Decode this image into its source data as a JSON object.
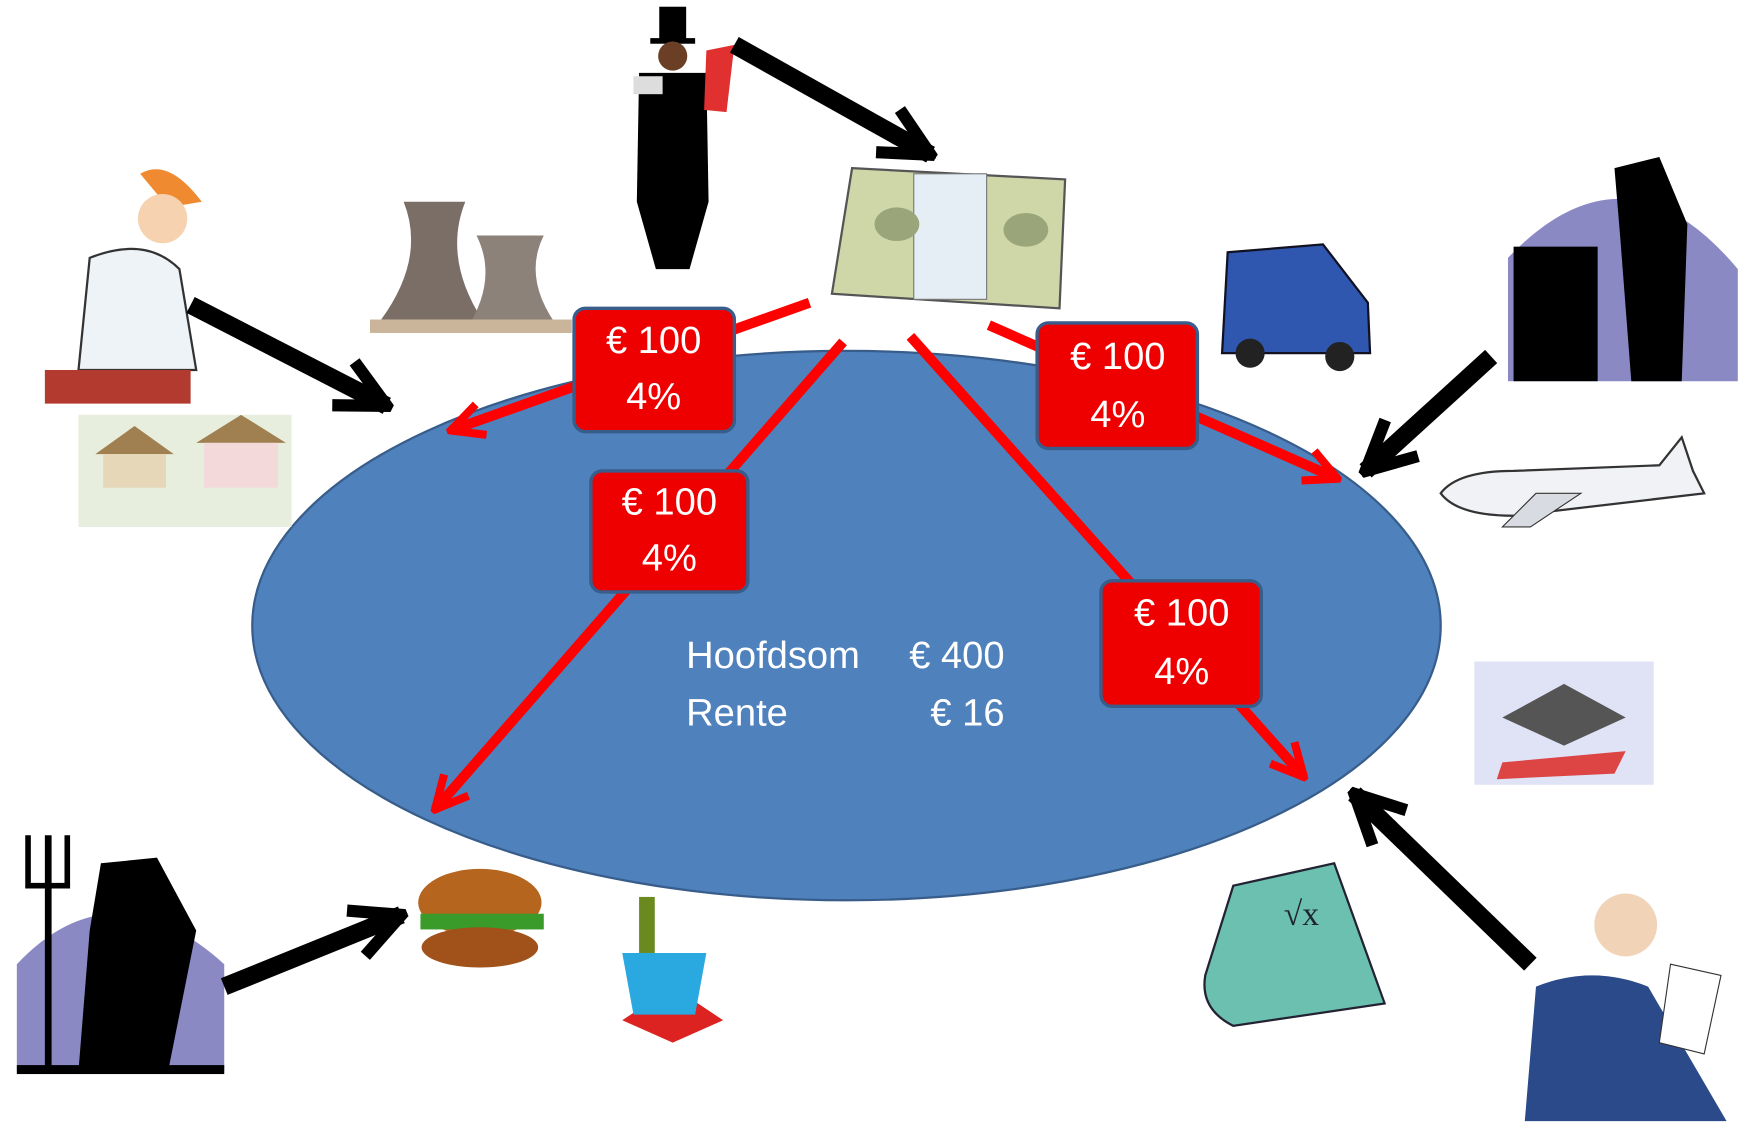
{
  "loans": [
    {
      "amount": "€ 100",
      "rate": "4%"
    },
    {
      "amount": "€ 100",
      "rate": "4%"
    },
    {
      "amount": "€ 100",
      "rate": "4%"
    },
    {
      "amount": "€ 100",
      "rate": "4%"
    }
  ],
  "summary": [
    {
      "label": "Hoofdsom",
      "value": "€ 400"
    },
    {
      "label": "Rente",
      "value": "€ 16"
    }
  ]
}
